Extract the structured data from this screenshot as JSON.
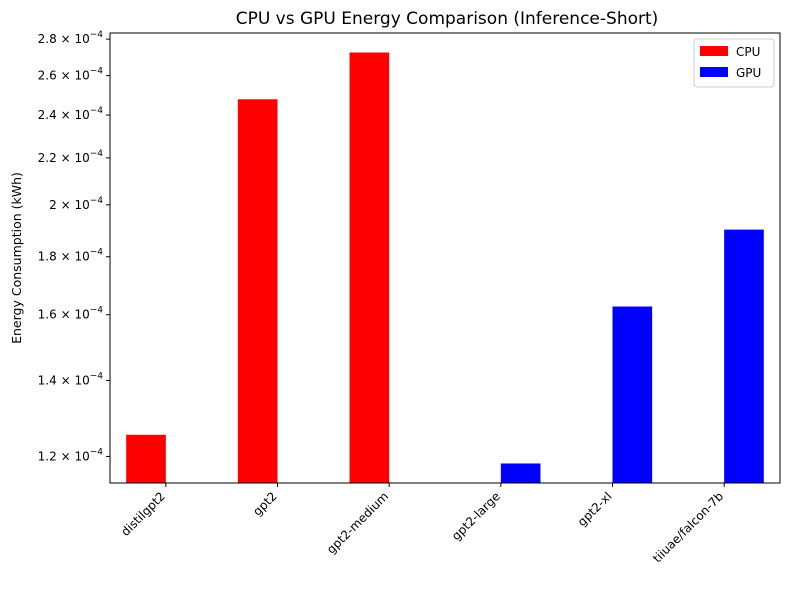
{
  "chart_data": {
    "type": "bar",
    "title": "CPU vs GPU Energy Comparison (Inference-Short)",
    "xlabel": "",
    "ylabel": "Energy Consumption (kWh)",
    "yscale": "log",
    "ylim": [
      0.0001137,
      0.0002835
    ],
    "categories": [
      "distilgpt2",
      "gpt2",
      "gpt2-medium",
      "gpt2-large",
      "gpt2-xl",
      "tiiuae/falcon-7b"
    ],
    "series": [
      {
        "name": "CPU",
        "color": "#ff0000",
        "values": [
          0.0001254,
          0.0002478,
          0.0002725,
          null,
          null,
          null
        ]
      },
      {
        "name": "GPU",
        "color": "#0000ff",
        "values": [
          null,
          null,
          null,
          0.0001183,
          0.0001627,
          0.0001902
        ]
      }
    ],
    "yticks": [
      {
        "value": 0.00012,
        "mantissa": "1.2"
      },
      {
        "value": 0.00014,
        "mantissa": "1.4"
      },
      {
        "value": 0.00016,
        "mantissa": "1.6"
      },
      {
        "value": 0.00018,
        "mantissa": "1.8"
      },
      {
        "value": 0.0002,
        "mantissa": "2"
      },
      {
        "value": 0.00022,
        "mantissa": "2.2"
      },
      {
        "value": 0.00024,
        "mantissa": "2.4"
      },
      {
        "value": 0.00026,
        "mantissa": "2.6"
      },
      {
        "value": 0.00028,
        "mantissa": "2.8"
      }
    ],
    "ytick_base": "10",
    "ytick_exponent": "−4",
    "grid": false,
    "legend_position": "top-right"
  }
}
